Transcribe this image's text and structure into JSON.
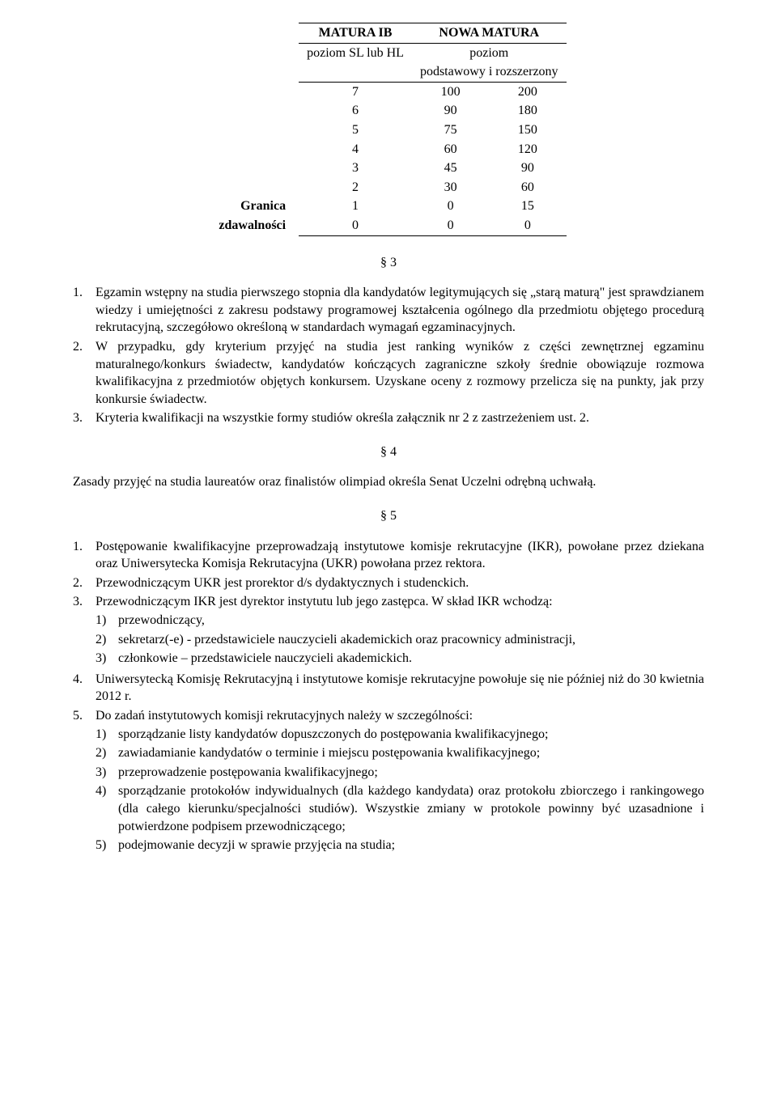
{
  "table": {
    "head_ib": "MATURA IB",
    "head_nowa": "NOWA MATURA",
    "sub_ib": "poziom SL lub HL",
    "sub_nowa_1": "poziom",
    "sub_nowa_2": "podstawowy i rozszerzony",
    "rows": [
      {
        "lbl": "",
        "c1": "7",
        "c2": "100",
        "c3": "200"
      },
      {
        "lbl": "",
        "c1": "6",
        "c2": "90",
        "c3": "180"
      },
      {
        "lbl": "",
        "c1": "5",
        "c2": "75",
        "c3": "150"
      },
      {
        "lbl": "",
        "c1": "4",
        "c2": "60",
        "c3": "120"
      },
      {
        "lbl": "",
        "c1": "3",
        "c2": "45",
        "c3": "90"
      },
      {
        "lbl": "",
        "c1": "2",
        "c2": "30",
        "c3": "60"
      },
      {
        "lbl": "Granica",
        "c1": "1",
        "c2": "0",
        "c3": "15"
      },
      {
        "lbl": "zdawalności",
        "c1": "0",
        "c2": "0",
        "c3": "0"
      }
    ]
  },
  "s3_mark": "§ 3",
  "s3": {
    "i1_num": "1.",
    "i1": "Egzamin wstępny na studia pierwszego stopnia dla kandydatów legitymujących się „starą maturą\" jest sprawdzianem wiedzy i umiejętności z zakresu podstawy programowej kształcenia ogólnego dla przedmiotu objętego procedurą rekrutacyjną, szczegółowo określoną w standardach wymagań egzaminacyjnych.",
    "i2_num": "2.",
    "i2": "W przypadku, gdy kryterium przyjęć na studia jest ranking wyników z części zewnętrznej egzaminu maturalnego/konkurs świadectw, kandydatów kończących zagraniczne szkoły średnie obowiązuje rozmowa kwalifikacyjna z przedmiotów objętych konkursem. Uzyskane oceny z rozmowy przelicza się na punkty, jak przy konkursie świadectw.",
    "i3_num": "3.",
    "i3": "Kryteria kwalifikacji na wszystkie formy studiów określa załącznik nr 2 z zastrzeżeniem ust. 2."
  },
  "s4_mark": "§ 4",
  "s4_text": "Zasady przyjęć na studia laureatów oraz finalistów olimpiad określa Senat Uczelni odrębną uchwałą.",
  "s5_mark": "§ 5",
  "s5": {
    "i1_num": "1.",
    "i1": "Postępowanie kwalifikacyjne przeprowadzają instytutowe komisje rekrutacyjne (IKR), powołane przez dziekana oraz Uniwersytecka Komisja Rekrutacyjna (UKR) powołana przez rektora.",
    "i2_num": "2.",
    "i2": "Przewodniczącym UKR jest prorektor d/s dydaktycznych i studenckich.",
    "i3_num": "3.",
    "i3_lead": "Przewodniczącym IKR jest dyrektor instytutu lub jego zastępca. W skład IKR wchodzą:",
    "i3_sub": [
      {
        "n": "1)",
        "t": "przewodniczący,"
      },
      {
        "n": "2)",
        "t": "sekretarz(-e) - przedstawiciele nauczycieli akademickich oraz pracownicy administracji,"
      },
      {
        "n": "3)",
        "t": "członkowie – przedstawiciele nauczycieli akademickich."
      }
    ],
    "i4_num": "4.",
    "i4": "Uniwersytecką Komisję Rekrutacyjną i instytutowe komisje rekrutacyjne powołuje się nie później niż do 30 kwietnia 2012 r.",
    "i5_num": "5.",
    "i5_lead": "Do zadań instytutowych komisji rekrutacyjnych należy w szczególności:",
    "i5_sub": [
      {
        "n": "1)",
        "t": "sporządzanie listy kandydatów dopuszczonych do postępowania kwalifikacyjnego;"
      },
      {
        "n": "2)",
        "t": "zawiadamianie kandydatów o terminie i miejscu postępowania kwalifikacyjnego;"
      },
      {
        "n": "3)",
        "t": "przeprowadzenie postępowania kwalifikacyjnego;"
      },
      {
        "n": "4)",
        "t": "sporządzanie protokołów indywidualnych (dla każdego kandydata) oraz protokołu zbiorczego i rankingowego (dla całego kierunku/specjalności studiów). Wszystkie zmiany w protokole powinny być uzasadnione i potwierdzone podpisem przewodniczącego;"
      },
      {
        "n": "5)",
        "t": "podejmowanie decyzji w sprawie przyjęcia na studia;"
      }
    ]
  }
}
